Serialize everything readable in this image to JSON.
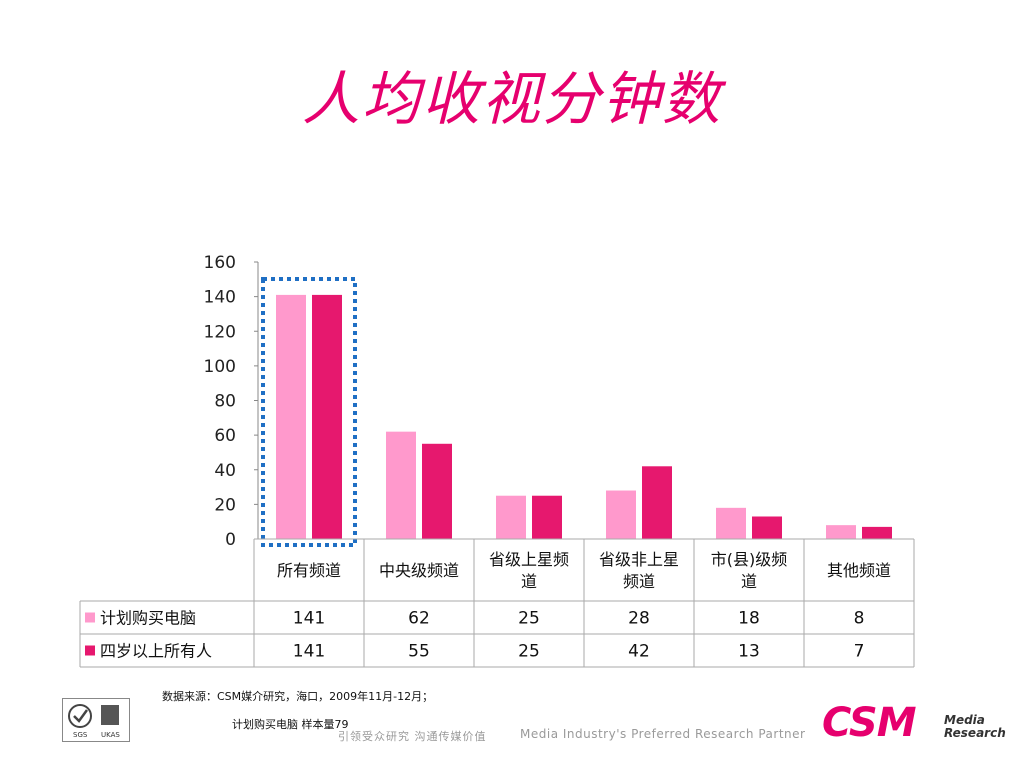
{
  "title": "人均收视分钟数",
  "chart_data": {
    "type": "bar",
    "categories": [
      "所有频道",
      "中央级频道",
      "省级上星频道",
      "省级非上星频道",
      "市(县)级频道",
      "其他频道"
    ],
    "category_lines": [
      [
        "所有频道"
      ],
      [
        "中央级频道"
      ],
      [
        "省级上星频",
        "道"
      ],
      [
        "省级非上星",
        "频道"
      ],
      [
        "市(县)级频",
        "道"
      ],
      [
        "其他频道"
      ]
    ],
    "series": [
      {
        "name": "计划购买电脑",
        "values": [
          141,
          62,
          25,
          28,
          18,
          8
        ],
        "color": "#ff99cc"
      },
      {
        "name": "四岁以上所有人",
        "values": [
          141,
          55,
          25,
          42,
          13,
          7
        ],
        "color": "#e6186e"
      }
    ],
    "ylim": [
      0,
      160
    ],
    "yticks": [
      0,
      20,
      40,
      60,
      80,
      100,
      120,
      140,
      160
    ],
    "grid": false,
    "data_table": true,
    "highlight_category": "所有频道",
    "highlight_color": "#1f6fc4"
  },
  "source": {
    "line1": "数据来源：CSM媒介研究，海口，2009年11月-12月；",
    "line2": "计划购买电脑 样本量79"
  },
  "footer": {
    "slogan_cn": "引领受众研究  沟通传媒价值",
    "slogan_en": "Media Industry's Preferred Research Partner",
    "logo_text": "CSM",
    "logo_media": "Media",
    "logo_research": "Research",
    "cert_labels": [
      "SGS",
      "UKAS"
    ]
  }
}
